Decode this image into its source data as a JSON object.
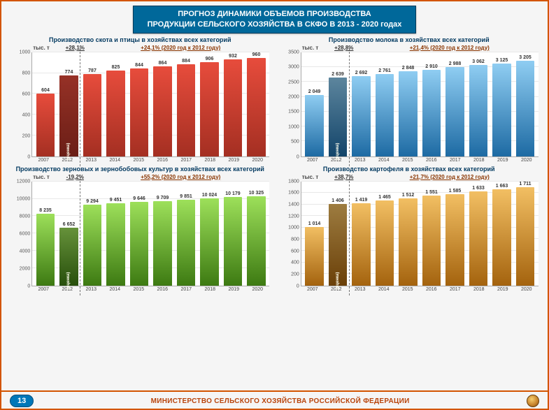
{
  "header_line1": "ПРОГНОЗ ДИНАМИКИ ОБЪЕМОВ ПРОИЗВОДСТВА",
  "header_line2": "ПРОДУКЦИИ СЕЛЬСКОГО ХОЗЯЙСТВА В СКФО В 2013 - 2020 годах",
  "footer_text": "МИНИСТЕРСТВО СЕЛЬСКОГО ХОЗЯЙСТВА РОССИЙСКОЙ ФЕДЕРАЦИИ",
  "page_number": "13",
  "colors": {
    "frame": "#d35400",
    "header_bg": "#00689a",
    "footer_text": "#b9440b",
    "red_bar": [
      "#e74c3c",
      "#a42f22"
    ],
    "blue_bar": [
      "#6db9e8",
      "#1d6aa3"
    ],
    "green_bar": [
      "#7fd13b",
      "#3d7a12"
    ],
    "orange_bar": [
      "#e8a43b",
      "#a4630e"
    ],
    "estimate_overlay": "rgba(0,0,0,.35)"
  },
  "charts": [
    {
      "id": "livestock",
      "title": "Производство скота и птицы в хозяйствах всех категорий",
      "unit": "тыс. т",
      "pct1": "+28,1%",
      "pct2": "+24,1% (2020 год  к 2012 году)",
      "color_top": "#e74c3c",
      "color_bot": "#a42f22",
      "ymax": 1000,
      "yticks": [
        0,
        200,
        400,
        600,
        800,
        1000
      ],
      "years": [
        "2007",
        "2012",
        "2013",
        "2014",
        "2015",
        "2016",
        "2017",
        "2018",
        "2019",
        "2020"
      ],
      "values": [
        604,
        774,
        787,
        825,
        844,
        864,
        884,
        906,
        932,
        960
      ],
      "estimate_index": 1,
      "split_after": 1
    },
    {
      "id": "milk",
      "title": "Производство молока в хозяйствах всех категорий",
      "unit": "тыс. т",
      "pct1": "+28,8%",
      "pct2": "+21,4% (2020 год  к 2012 году)",
      "color_top": "#8fcdf2",
      "color_bot": "#1d6aa3",
      "ymax": 3500,
      "yticks": [
        0,
        500,
        1000,
        1500,
        2000,
        2500,
        3000,
        3500
      ],
      "years": [
        "2007",
        "2012",
        "2013",
        "2014",
        "2015",
        "2016",
        "2017",
        "2018",
        "2019",
        "2020"
      ],
      "values": [
        2049,
        2639,
        2692,
        2761,
        2848,
        2910,
        2988,
        3062,
        3125,
        3205
      ],
      "estimate_index": 1,
      "split_after": 1
    },
    {
      "id": "grain",
      "title": "Производство зерновых и зернобобовых культур в хозяйствах всех категорий",
      "unit": "тыс. т",
      "pct1": "-19,2%",
      "pct2": "+55,2% (2020 год  к 2012 году)",
      "color_top": "#9de05a",
      "color_bot": "#3d7a12",
      "ymax": 12000,
      "yticks": [
        0,
        2000,
        4000,
        6000,
        8000,
        10000,
        12000
      ],
      "years": [
        "2007",
        "2012",
        "2013",
        "2014",
        "2015",
        "2016",
        "2017",
        "2018",
        "2019",
        "2020"
      ],
      "values": [
        8235,
        6652,
        9294,
        9451,
        9646,
        9709,
        9851,
        10024,
        10179,
        10325
      ],
      "estimate_index": 1,
      "split_after": 1
    },
    {
      "id": "potato",
      "title": "Производство картофеля в хозяйствах всех категорий",
      "unit": "тыс. т",
      "pct1": "+38,7%",
      "pct2": "+21,7% (2020 год  к 2012 году)",
      "color_top": "#f2bf63",
      "color_bot": "#a4630e",
      "ymax": 1800,
      "yticks": [
        0,
        200,
        400,
        600,
        800,
        1000,
        1200,
        1400,
        1600,
        1800
      ],
      "years": [
        "2007",
        "2012",
        "2013",
        "2014",
        "2015",
        "2016",
        "2017",
        "2018",
        "2019",
        "2020"
      ],
      "values": [
        1014,
        1406,
        1419,
        1465,
        1512,
        1551,
        1585,
        1633,
        1663,
        1711
      ],
      "estimate_index": 1,
      "split_after": 1
    }
  ],
  "estimate_label": "(оценка)"
}
